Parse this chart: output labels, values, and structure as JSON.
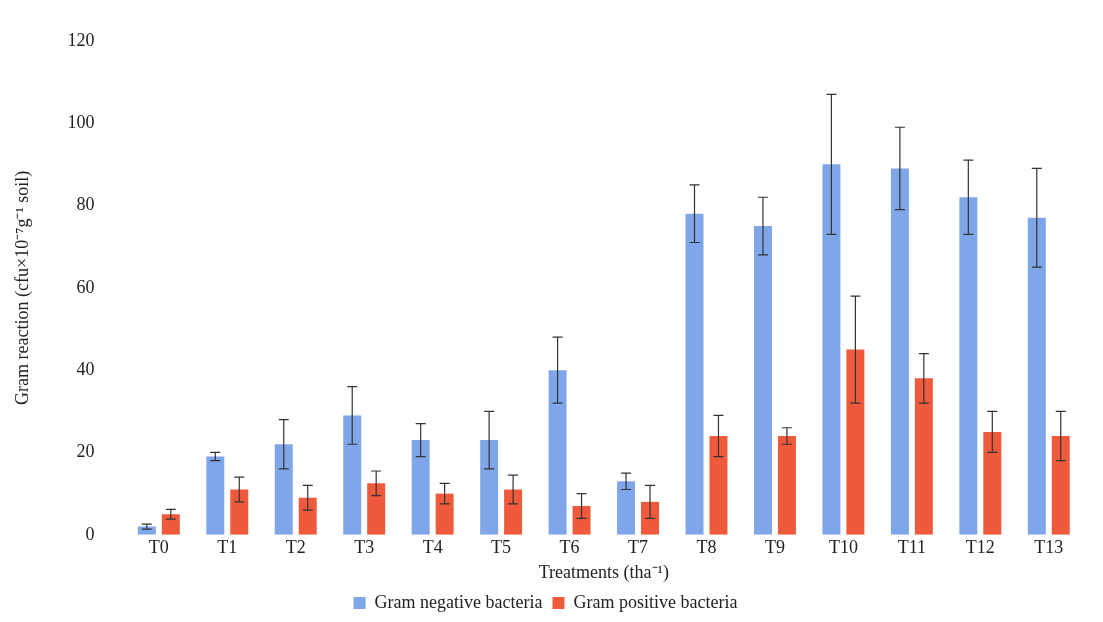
{
  "chart_data": {
    "type": "bar",
    "xlabel": "Treatments (tha⁻¹)",
    "ylabel": "Gram reaction (cfu×10⁻⁷g⁻¹ soil)",
    "categories": [
      "T0",
      "T1",
      "T2",
      "T3",
      "T4",
      "T5",
      "T6",
      "T7",
      "T8",
      "T9",
      "T10",
      "T11",
      "T12",
      "T13"
    ],
    "series": [
      {
        "name": "Gram negative bacteria",
        "color": "#7fa6e8",
        "values": [
          2,
          19,
          22,
          29,
          23,
          23,
          40,
          13,
          78,
          75,
          90,
          89,
          82,
          77
        ],
        "errors": [
          0.6,
          1,
          6,
          7,
          4,
          7,
          8,
          2,
          7,
          7,
          17,
          10,
          9,
          12
        ]
      },
      {
        "name": "Gram positive bacteria",
        "color": "#ef5a3c",
        "values": [
          5,
          11,
          9,
          12.5,
          10,
          11,
          7,
          8,
          24,
          24,
          45,
          38,
          25,
          24
        ],
        "errors": [
          1.2,
          3,
          3,
          3,
          2.5,
          3.5,
          3,
          4,
          5,
          2,
          13,
          6,
          5,
          6
        ]
      }
    ],
    "ylim": [
      0,
      120
    ],
    "yticks": [
      0,
      20,
      40,
      60,
      80,
      100,
      120
    ],
    "grid": false,
    "legend": "bottom"
  }
}
